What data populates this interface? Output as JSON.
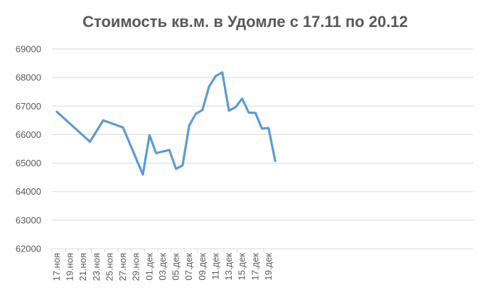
{
  "chart_data": {
    "type": "line",
    "title": "Стоимость кв.м. в Удомле с 17.11 по 20.12",
    "xlabel": "",
    "ylabel": "",
    "ylim": [
      62000,
      69000
    ],
    "y_ticks": [
      62000,
      63000,
      64000,
      65000,
      66000,
      67000,
      68000,
      69000
    ],
    "y_tick_labels": [
      "62000",
      "63000",
      "64000",
      "65000",
      "66000",
      "67000",
      "68000",
      "69000"
    ],
    "x_ticks": [
      "17.ноя",
      "19.ноя",
      "21.ноя",
      "23.ноя",
      "25.ноя",
      "27.ноя",
      "29.ноя",
      "01.дек",
      "03.дек",
      "05.дек",
      "07.дек",
      "09.дек",
      "11.дек",
      "13.дек",
      "15.дек",
      "17.дек",
      "19.дек"
    ],
    "grid": true,
    "legend": "none",
    "series": [
      {
        "color": "#5b9bd5",
        "x": [
          "17.ноя",
          "22.ноя",
          "24.ноя",
          "27.ноя",
          "30.ноя",
          "01.дек",
          "02.дек",
          "04.дек",
          "05.дек",
          "06.дек",
          "07.дек",
          "08.дек",
          "09.дек",
          "10.дек",
          "11.дек",
          "12.дек",
          "13.дек",
          "14.дек",
          "15.дек",
          "16.дек",
          "17.дек",
          "18.дек",
          "19.дек",
          "20.дек"
        ],
        "values": [
          66800,
          65750,
          66500,
          66250,
          64600,
          65980,
          65350,
          65460,
          64800,
          64920,
          66320,
          66730,
          66860,
          67680,
          68050,
          68180,
          66840,
          66960,
          67260,
          66770,
          66760,
          66210,
          66230,
          65080
        ]
      }
    ]
  }
}
